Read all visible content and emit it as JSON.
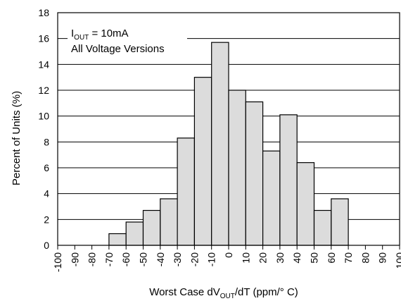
{
  "chart_data": {
    "type": "bar",
    "x_ticks": [
      "-100",
      "-90",
      "-80",
      "-70",
      "-60",
      "-50",
      "-40",
      "-30",
      "-20",
      "-10",
      "0",
      "10",
      "20",
      "30",
      "40",
      "50",
      "60",
      "70",
      "80",
      "90",
      "100"
    ],
    "bins": [
      {
        "x0": -70,
        "x1": -60,
        "value": 0.9
      },
      {
        "x0": -60,
        "x1": -50,
        "value": 1.8
      },
      {
        "x0": -50,
        "x1": -40,
        "value": 2.7
      },
      {
        "x0": -40,
        "x1": -30,
        "value": 3.6
      },
      {
        "x0": -30,
        "x1": -20,
        "value": 8.3
      },
      {
        "x0": -20,
        "x1": -10,
        "value": 13.0
      },
      {
        "x0": -10,
        "x1": 0,
        "value": 15.7
      },
      {
        "x0": 0,
        "x1": 10,
        "value": 12.0
      },
      {
        "x0": 10,
        "x1": 20,
        "value": 11.1
      },
      {
        "x0": 20,
        "x1": 30,
        "value": 7.3
      },
      {
        "x0": 30,
        "x1": 40,
        "value": 10.1
      },
      {
        "x0": 40,
        "x1": 50,
        "value": 6.4
      },
      {
        "x0": 50,
        "x1": 60,
        "value": 2.7
      },
      {
        "x0": 60,
        "x1": 70,
        "value": 3.6
      }
    ],
    "y_ticks": [
      0,
      2,
      4,
      6,
      8,
      10,
      12,
      14,
      16,
      18
    ],
    "xlim": [
      -100,
      100
    ],
    "ylim": [
      0,
      18
    ],
    "grid": "horizontal",
    "ylabel": "Percent of Units (%)",
    "xlabel": {
      "prefix": "Worst Case dV",
      "sub": "OUT",
      "suffix": "/dT (ppm/° C)"
    },
    "annotation": {
      "line1_prefix": "I",
      "line1_sub": "OUT",
      "line1_suffix": " = 10mA",
      "line2": "All Voltage Versions"
    },
    "bar_fill": "#dcdcdc",
    "bar_stroke": "#000000"
  }
}
